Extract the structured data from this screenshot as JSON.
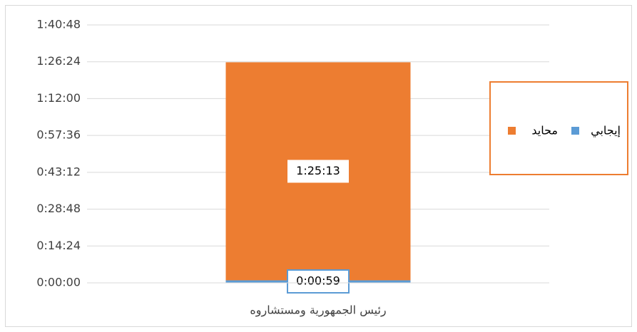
{
  "chart_data": {
    "type": "stacked_bar",
    "categories": [
      "رئيس الجمهورية ومستشاروه"
    ],
    "series": [
      {
        "name": "إيجابي",
        "color": "#5b9bd5",
        "values": [
          59
        ],
        "value_labels": [
          "0:00:59"
        ]
      },
      {
        "name": "محايد",
        "color": "#ed7d31",
        "values": [
          5113
        ],
        "value_labels": [
          "1:25:13"
        ]
      }
    ],
    "ylim": [
      0,
      6048
    ],
    "yticks": [
      {
        "value": 0,
        "label": "0:00:00"
      },
      {
        "value": 864,
        "label": "0:14:24"
      },
      {
        "value": 1728,
        "label": "0:28:48"
      },
      {
        "value": 2592,
        "label": "0:43:12"
      },
      {
        "value": 3456,
        "label": "0:57:36"
      },
      {
        "value": 4320,
        "label": "1:12:00"
      },
      {
        "value": 5184,
        "label": "1:26:24"
      },
      {
        "value": 6048,
        "label": "1:40:48"
      }
    ],
    "grid": true,
    "legend": "right"
  }
}
